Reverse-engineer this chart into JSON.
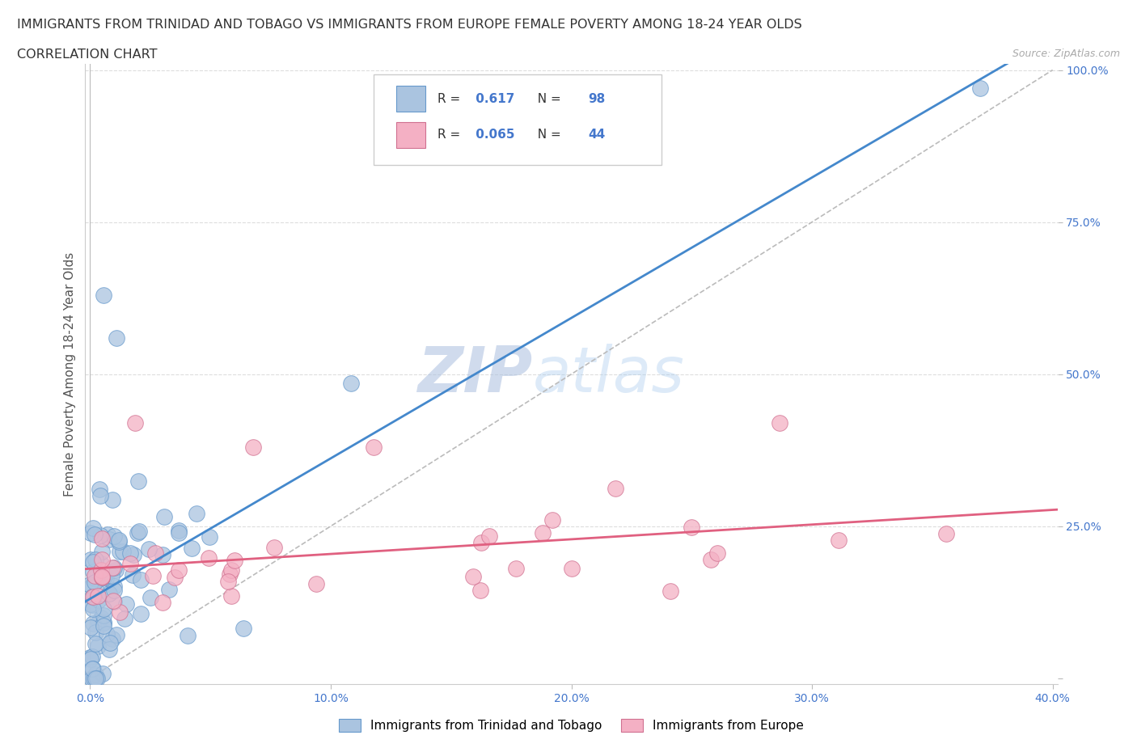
{
  "title_line1": "IMMIGRANTS FROM TRINIDAD AND TOBAGO VS IMMIGRANTS FROM EUROPE FEMALE POVERTY AMONG 18-24 YEAR OLDS",
  "title_line2": "CORRELATION CHART",
  "source_text": "Source: ZipAtlas.com",
  "xlabel": "",
  "ylabel": "Female Poverty Among 18-24 Year Olds",
  "xlim": [
    -0.002,
    0.402
  ],
  "ylim": [
    -0.01,
    1.01
  ],
  "xticks": [
    0.0,
    0.1,
    0.2,
    0.3,
    0.4
  ],
  "yticks": [
    0.0,
    0.25,
    0.5,
    0.75,
    1.0
  ],
  "xticklabels": [
    "0.0%",
    "10.0%",
    "20.0%",
    "30.0%",
    "40.0%"
  ],
  "yticklabels": [
    "",
    "25.0%",
    "50.0%",
    "75.0%",
    "100.0%"
  ],
  "series1_color": "#aac4e0",
  "series1_edge": "#6699cc",
  "series2_color": "#f4b0c4",
  "series2_edge": "#d07090",
  "line1_color": "#4488cc",
  "line2_color": "#e06080",
  "R1": 0.617,
  "N1": 98,
  "R2": 0.065,
  "N2": 44,
  "legend_label1": "Immigrants from Trinidad and Tobago",
  "legend_label2": "Immigrants from Europe",
  "title_fontsize": 11.5,
  "subtitle_fontsize": 11.5,
  "axis_label_fontsize": 11,
  "tick_fontsize": 10,
  "background_color": "#ffffff",
  "plot_bg_color": "#ffffff",
  "grid_color": "#cccccc"
}
